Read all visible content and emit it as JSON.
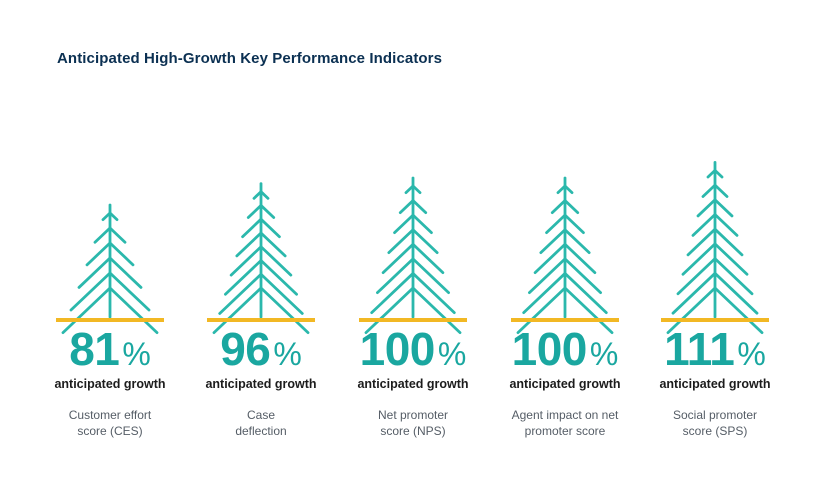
{
  "chart_data": {
    "type": "bar",
    "title": "Anticipated High-Growth Key Performance Indicators",
    "value_caption": "anticipated growth",
    "unit": "%",
    "categories": [
      [
        "Customer effort",
        "score (CES)"
      ],
      [
        "Case",
        "deflection"
      ],
      [
        "Net promoter",
        "score (NPS)"
      ],
      [
        "Agent impact on net",
        "promoter score"
      ],
      [
        "Social promoter",
        "score (SPS)"
      ]
    ],
    "values": [
      81,
      96,
      100,
      100,
      111
    ],
    "colors": {
      "tree": "#2bb8ac",
      "base": "#f2b824",
      "value": "#1aa7a0",
      "title": "#0b3052"
    }
  }
}
